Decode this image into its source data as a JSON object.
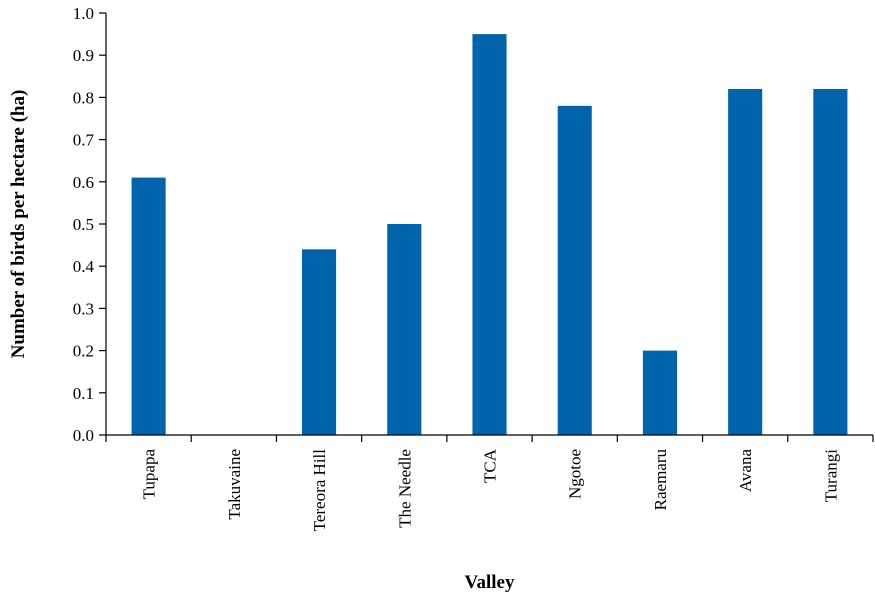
{
  "chart_data": {
    "type": "bar",
    "title": "",
    "xlabel": "Valley",
    "ylabel": "Number of birds per hectare (ha)",
    "ylim": [
      0,
      1.0
    ],
    "yticks": [
      "0.0",
      "0.1",
      "0.2",
      "0.3",
      "0.4",
      "0.5",
      "0.6",
      "0.7",
      "0.8",
      "0.9",
      "1.0"
    ],
    "categories": [
      "Tupapa",
      "Takuvaine",
      "Tereora Hill",
      "The Needle",
      "TCA",
      "Ngotoe",
      "Raemaru",
      "Avana",
      "Turangi"
    ],
    "values": [
      0.61,
      0,
      0.44,
      0.5,
      0.95,
      0.78,
      0.2,
      0.82,
      0.82
    ],
    "bar_color": "#0064ad",
    "grid": false,
    "legend": "none"
  }
}
